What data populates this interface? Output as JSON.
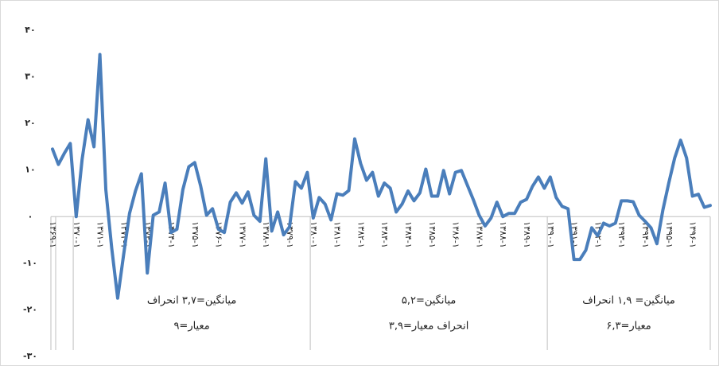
{
  "chart_data": {
    "type": "line",
    "color": "#4a7ebb",
    "ylim": [
      -30,
      40
    ],
    "yticks": [
      {
        "value": -30,
        "label": "-۳۰"
      },
      {
        "value": -20,
        "label": "-۲۰"
      },
      {
        "value": -10,
        "label": "-۱۰"
      },
      {
        "value": 0,
        "label": "۰"
      },
      {
        "value": 10,
        "label": "۱۰"
      },
      {
        "value": 20,
        "label": "۲۰"
      },
      {
        "value": 30,
        "label": "۳۰"
      },
      {
        "value": 40,
        "label": "۴۰"
      }
    ],
    "categories": [
      "۱۳۶۹-۱",
      null,
      null,
      null,
      "۱۳۷۰-۱",
      null,
      null,
      null,
      "۱۳۷۱-۱",
      null,
      null,
      null,
      "۱۳۷۲-۱",
      null,
      null,
      null,
      "۱۳۷۳-۱",
      null,
      null,
      null,
      "۱۳۷۴-۱",
      null,
      null,
      null,
      "۱۳۷۵-۱",
      null,
      null,
      null,
      "۱۳۷۶-۱",
      null,
      null,
      null,
      "۱۳۷۷-۱",
      null,
      null,
      null,
      "۱۳۷۸-۱",
      null,
      null,
      null,
      "۱۳۷۹-۱",
      null,
      null,
      null,
      "۱۳۸۰-۱",
      null,
      null,
      null,
      "۱۳۸۱-۱",
      null,
      null,
      null,
      "۱۳۸۲-۱",
      null,
      null,
      null,
      "۱۳۸۳-۱",
      null,
      null,
      null,
      "۱۳۸۴-۱",
      null,
      null,
      null,
      "۱۳۸۵-۱",
      null,
      null,
      null,
      "۱۳۸۶-۱",
      null,
      null,
      null,
      "۱۳۸۷-۱",
      null,
      null,
      null,
      "۱۳۸۸-۱",
      null,
      null,
      null,
      "۱۳۸۹-۱",
      null,
      null,
      null,
      "۱۳۹۰-۱",
      null,
      null,
      null,
      "۱۳۹۱-۱",
      null,
      null,
      null,
      "۱۳۹۲-۱",
      null,
      null,
      null,
      "۱۳۹۳-۱",
      null,
      null,
      null,
      "۱۳۹۴-۱",
      null,
      null,
      null,
      "۱۳۹۵-۱",
      null,
      null,
      null,
      "۱۳۹۶-۱",
      null,
      null,
      null
    ],
    "values": [
      14.5,
      11.2,
      13.6,
      15.7,
      0,
      12.3,
      20.8,
      15,
      34.8,
      5.8,
      -6.8,
      -17.5,
      -8.2,
      0.7,
      5.5,
      9.2,
      -12.1,
      0.3,
      1,
      7.2,
      -3.4,
      -2.7,
      5.8,
      10.7,
      11.6,
      6.6,
      0.3,
      1.7,
      -2.7,
      -3.4,
      3.1,
      5.1,
      2.9,
      5.3,
      0.3,
      -1,
      12.4,
      -3.1,
      1,
      -3.9,
      -2.2,
      7.5,
      6.1,
      9.5,
      -0.3,
      4.1,
      2.7,
      -0.7,
      4.9,
      4.6,
      5.6,
      16.7,
      11.4,
      7.8,
      9.5,
      4.4,
      7.2,
      6.1,
      1,
      2.7,
      5.5,
      3.4,
      5.1,
      10.2,
      4.4,
      4.4,
      9.9,
      4.9,
      9.5,
      9.9,
      6.8,
      3.7,
      0.3,
      -2,
      -0.3,
      3.1,
      0,
      0.7,
      0.7,
      3.1,
      3.7,
      6.5,
      8.5,
      6.1,
      8.5,
      4.1,
      2.2,
      1.7,
      -9.2,
      -9.2,
      -7.2,
      -2.4,
      -4.1,
      -1.4,
      -2,
      -1.4,
      3.4,
      3.4,
      3.2,
      0.3,
      -1,
      -2.4,
      -5.8,
      1.4,
      7.2,
      12.6,
      16.4,
      12.6,
      4.4,
      4.8,
      2,
      2.4
    ],
    "group_labels": [
      [
        "میانگین=۳,۷                    انحراف",
        "معیار=۹"
      ],
      [
        "میانگین=۵,۲",
        "انحراف معیار=۳,۹"
      ],
      [
        "میانگین= ۱,۹   انحراف",
        "معیار=۶,۳"
      ]
    ]
  }
}
